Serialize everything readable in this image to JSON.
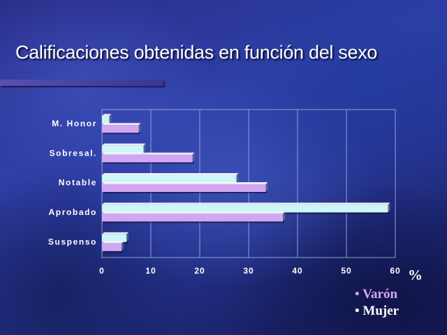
{
  "title": "Calificaciones obtenidas en función del sexo",
  "unit": "%",
  "legend": [
    {
      "bullet": "•",
      "label": "Varón",
      "color": "#d9a3f5"
    },
    {
      "bullet": "•",
      "label": "Mujer",
      "color": "#ffffff"
    }
  ],
  "colors": {
    "mujer_bar": "#ccf6f8",
    "varon_bar": "#d2a6f3",
    "grid": "#8fa0d8"
  },
  "chart_data": {
    "type": "bar",
    "orientation": "horizontal",
    "categories": [
      "M. Honor",
      "Sobresal.",
      "Notable",
      "Aprobado",
      "Suspenso"
    ],
    "series": [
      {
        "name": "Mujer",
        "values": [
          1.5,
          8.5,
          27.5,
          58.5,
          5
        ]
      },
      {
        "name": "Varón",
        "values": [
          7.5,
          18.5,
          33.5,
          37,
          4
        ]
      }
    ],
    "xticks": [
      0,
      10,
      20,
      30,
      40,
      50,
      60
    ],
    "xlim": [
      0,
      60
    ],
    "grid": true,
    "legend_position": "bottom-right"
  }
}
